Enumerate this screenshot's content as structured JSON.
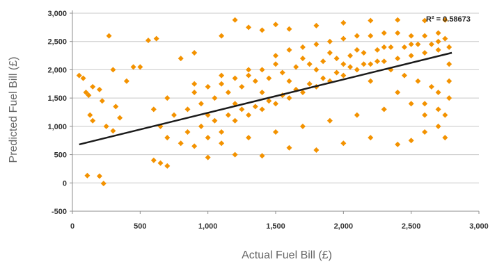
{
  "chart_data": {
    "type": "scatter",
    "xlabel": "Actual Fuel Bill (£)",
    "ylabel": "Predicted Fuel Bill (£)",
    "xlim": [
      0,
      3000
    ],
    "ylim": [
      -500,
      3000
    ],
    "x_ticks": [
      0,
      500,
      1000,
      1500,
      2000,
      2500,
      3000
    ],
    "x_tick_labels": [
      "0",
      "500",
      "1,000",
      "1,500",
      "2,000",
      "2,500",
      "3,000"
    ],
    "y_ticks": [
      -500,
      0,
      500,
      1000,
      1500,
      2000,
      2500,
      3000
    ],
    "y_tick_labels": [
      "-500",
      "0",
      "500",
      "1,000",
      "1,500",
      "2,000",
      "2,500",
      "3,000"
    ],
    "grid": {
      "horizontal": true,
      "vertical": false
    },
    "annotation": "R² = 0.58673",
    "series": [
      {
        "marker": "diamond",
        "color": "#F39200",
        "points": [
          [
            50,
            1900
          ],
          [
            80,
            1850
          ],
          [
            100,
            1600
          ],
          [
            120,
            1550
          ],
          [
            110,
            130
          ],
          [
            130,
            1200
          ],
          [
            150,
            1700
          ],
          [
            150,
            1100
          ],
          [
            200,
            1650
          ],
          [
            220,
            1450
          ],
          [
            200,
            120
          ],
          [
            230,
            -10
          ],
          [
            270,
            2600
          ],
          [
            250,
            1000
          ],
          [
            300,
            920
          ],
          [
            320,
            1350
          ],
          [
            350,
            1150
          ],
          [
            300,
            2000
          ],
          [
            400,
            1800
          ],
          [
            450,
            2050
          ],
          [
            500,
            2050
          ],
          [
            560,
            2520
          ],
          [
            600,
            400
          ],
          [
            650,
            350
          ],
          [
            700,
            300
          ],
          [
            620,
            2550
          ],
          [
            800,
            2200
          ],
          [
            900,
            2300
          ],
          [
            1100,
            2600
          ],
          [
            1200,
            2880
          ],
          [
            1300,
            2750
          ],
          [
            1400,
            2700
          ],
          [
            1500,
            2800
          ],
          [
            1600,
            2720
          ],
          [
            1800,
            2780
          ],
          [
            2000,
            2830
          ],
          [
            2200,
            2870
          ],
          [
            2400,
            2880
          ],
          [
            2600,
            2870
          ],
          [
            2750,
            2880
          ],
          [
            1000,
            450
          ],
          [
            1200,
            500
          ],
          [
            1400,
            480
          ],
          [
            1600,
            620
          ],
          [
            1800,
            580
          ],
          [
            2000,
            700
          ],
          [
            2200,
            800
          ],
          [
            2400,
            680
          ],
          [
            2500,
            750
          ],
          [
            2600,
            900
          ],
          [
            2700,
            1000
          ],
          [
            2750,
            1200
          ],
          [
            2780,
            1500
          ],
          [
            2780,
            1800
          ],
          [
            2780,
            2100
          ],
          [
            2780,
            2400
          ],
          [
            2700,
            2500
          ],
          [
            2500,
            2450
          ],
          [
            2300,
            2400
          ],
          [
            2100,
            2350
          ],
          [
            1900,
            2300
          ],
          [
            1700,
            2200
          ],
          [
            1500,
            2100
          ],
          [
            1300,
            2000
          ],
          [
            1100,
            1900
          ],
          [
            900,
            1750
          ],
          [
            700,
            1500
          ],
          [
            600,
            1300
          ],
          [
            650,
            1000
          ],
          [
            700,
            800
          ],
          [
            800,
            700
          ],
          [
            900,
            650
          ],
          [
            1000,
            800
          ],
          [
            1100,
            900
          ],
          [
            1200,
            1100
          ],
          [
            1300,
            1200
          ],
          [
            1400,
            1300
          ],
          [
            1500,
            1400
          ],
          [
            1600,
            1500
          ],
          [
            1700,
            1600
          ],
          [
            1800,
            1700
          ],
          [
            1900,
            1800
          ],
          [
            2000,
            1900
          ],
          [
            2100,
            2000
          ],
          [
            2200,
            2100
          ],
          [
            2300,
            2150
          ],
          [
            2400,
            2200
          ],
          [
            2500,
            2250
          ],
          [
            2600,
            2300
          ],
          [
            2700,
            2350
          ],
          [
            750,
            1200
          ],
          [
            850,
            1300
          ],
          [
            950,
            1400
          ],
          [
            1050,
            1500
          ],
          [
            1150,
            1600
          ],
          [
            1250,
            1700
          ],
          [
            1350,
            1800
          ],
          [
            1450,
            1850
          ],
          [
            1550,
            1950
          ],
          [
            1650,
            2050
          ],
          [
            1750,
            2100
          ],
          [
            1850,
            2150
          ],
          [
            1950,
            2200
          ],
          [
            2050,
            2250
          ],
          [
            2150,
            2300
          ],
          [
            2250,
            2350
          ],
          [
            2350,
            2400
          ],
          [
            2450,
            2400
          ],
          [
            2550,
            2450
          ],
          [
            2650,
            2450
          ],
          [
            850,
            900
          ],
          [
            950,
            1000
          ],
          [
            1050,
            1100
          ],
          [
            1150,
            1200
          ],
          [
            1250,
            1300
          ],
          [
            1350,
            1350
          ],
          [
            1450,
            1450
          ],
          [
            1550,
            1550
          ],
          [
            1650,
            1650
          ],
          [
            1750,
            1750
          ],
          [
            1850,
            1850
          ],
          [
            1950,
            1950
          ],
          [
            2050,
            2050
          ],
          [
            2150,
            2100
          ],
          [
            2250,
            2150
          ],
          [
            2350,
            2000
          ],
          [
            2450,
            1900
          ],
          [
            2550,
            1800
          ],
          [
            2650,
            1700
          ],
          [
            2700,
            1600
          ],
          [
            1000,
            1200
          ],
          [
            1200,
            1400
          ],
          [
            1400,
            1600
          ],
          [
            1600,
            1800
          ],
          [
            1800,
            2000
          ],
          [
            2000,
            2100
          ],
          [
            2200,
            1800
          ],
          [
            2400,
            1600
          ],
          [
            2600,
            1400
          ],
          [
            2700,
            1300
          ],
          [
            1100,
            700
          ],
          [
            1300,
            800
          ],
          [
            1500,
            900
          ],
          [
            1700,
            1000
          ],
          [
            1900,
            1100
          ],
          [
            2100,
            1200
          ],
          [
            2300,
            1300
          ],
          [
            2500,
            1400
          ],
          [
            2600,
            1200
          ],
          [
            2750,
            800
          ],
          [
            900,
            1600
          ],
          [
            1000,
            1700
          ],
          [
            1100,
            1750
          ],
          [
            1200,
            1850
          ],
          [
            1300,
            1900
          ],
          [
            1400,
            2000
          ],
          [
            1500,
            2250
          ],
          [
            1600,
            2350
          ],
          [
            1700,
            2400
          ],
          [
            1800,
            2450
          ],
          [
            1900,
            2500
          ],
          [
            2000,
            2550
          ],
          [
            2100,
            2600
          ],
          [
            2200,
            2600
          ],
          [
            2300,
            2650
          ],
          [
            2400,
            2650
          ],
          [
            2500,
            2600
          ],
          [
            2600,
            2600
          ],
          [
            2700,
            2650
          ],
          [
            2750,
            2550
          ]
        ]
      }
    ],
    "trendline": {
      "x": [
        50,
        2800
      ],
      "y": [
        680,
        2300
      ],
      "color": "#1a1a1a"
    }
  }
}
